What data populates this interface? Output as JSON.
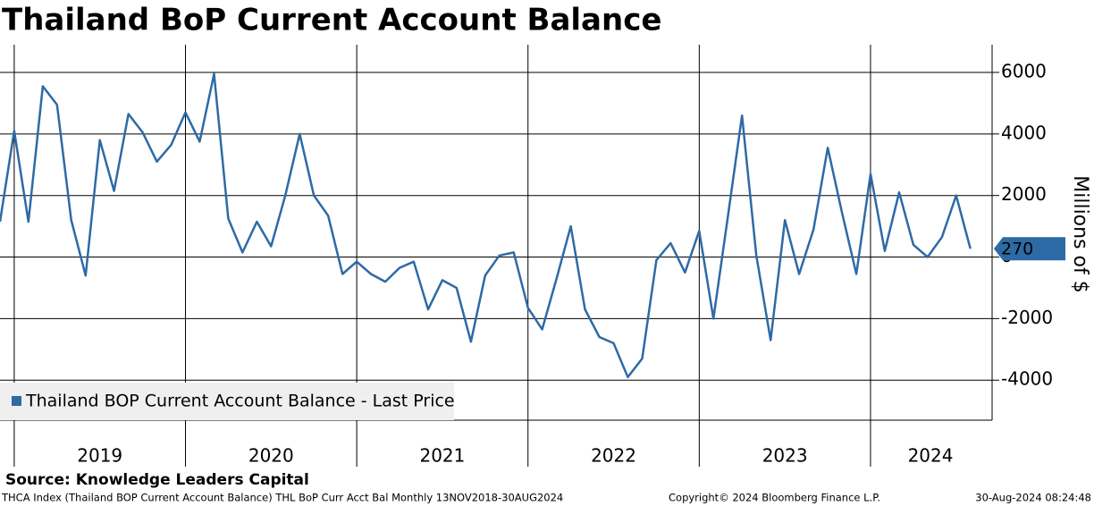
{
  "chart_data": {
    "type": "line",
    "title": "Thailand BoP Current Account Balance",
    "y_label": "Millions of $",
    "source": "Source: Knowledge Leaders Capital",
    "footer": [
      "THCA Index (Thailand BOP Current Account Balance) THL BoP Curr Acct Bal  Monthly 13NOV2018-30AUG2024",
      "Copyright© 2024 Bloomberg Finance L.P.",
      "30-Aug-2024 08:24:48"
    ],
    "x": [
      2018.917,
      2019,
      2019.083,
      2019.167,
      2019.25,
      2019.333,
      2019.417,
      2019.5,
      2019.583,
      2019.667,
      2019.75,
      2019.833,
      2019.917,
      2020,
      2020.083,
      2020.167,
      2020.25,
      2020.333,
      2020.417,
      2020.5,
      2020.583,
      2020.667,
      2020.75,
      2020.833,
      2020.917,
      2021,
      2021.083,
      2021.167,
      2021.25,
      2021.333,
      2021.417,
      2021.5,
      2021.583,
      2021.667,
      2021.75,
      2021.833,
      2021.917,
      2022,
      2022.083,
      2022.167,
      2022.25,
      2022.333,
      2022.417,
      2022.5,
      2022.583,
      2022.667,
      2022.75,
      2022.833,
      2022.917,
      2023,
      2023.083,
      2023.167,
      2023.25,
      2023.333,
      2023.417,
      2023.5,
      2023.583,
      2023.667,
      2023.75,
      2023.833,
      2023.917,
      2024,
      2024.083,
      2024.167,
      2024.25,
      2024.333,
      2024.417,
      2024.5,
      2024.583
    ],
    "series": [
      {
        "name": "Thailand BOP Current Account Balance - Last Price",
        "color": "#2e6aa5",
        "values": [
          1150,
          4100,
          1150,
          5550,
          4950,
          1200,
          -600,
          3800,
          2150,
          4650,
          4050,
          3100,
          3650,
          4700,
          3750,
          5950,
          1250,
          150,
          1150,
          350,
          2000,
          4000,
          2000,
          1350,
          -550,
          -150,
          -550,
          -800,
          -350,
          -150,
          -1700,
          -750,
          -1000,
          -2750,
          -600,
          50,
          150,
          -1650,
          -2350,
          -700,
          1000,
          -1700,
          -2600,
          -2800,
          -3900,
          -3300,
          -100,
          450,
          -500,
          850,
          -2000,
          1300,
          4600,
          50,
          -2700,
          1200,
          -550,
          900,
          3550,
          1450,
          -550,
          2700,
          200,
          2100,
          400,
          0,
          650,
          2000,
          270
        ]
      }
    ],
    "xlim": [
      2018.917,
      2024.71
    ],
    "xticks": [
      {
        "value": 2019.5,
        "label": "2019"
      },
      {
        "value": 2020.5,
        "label": "2020"
      },
      {
        "value": 2021.5,
        "label": "2021"
      },
      {
        "value": 2022.5,
        "label": "2022"
      },
      {
        "value": 2023.5,
        "label": "2023"
      },
      {
        "value": 2024.35,
        "label": "2024"
      }
    ],
    "xgrid": [
      2019,
      2020,
      2021,
      2022,
      2023,
      2024
    ],
    "ylim": [
      -5300,
      6900
    ],
    "yticks": [
      -4000,
      -2000,
      0,
      2000,
      4000,
      6000
    ],
    "grid": true,
    "legend": "lower left"
  }
}
